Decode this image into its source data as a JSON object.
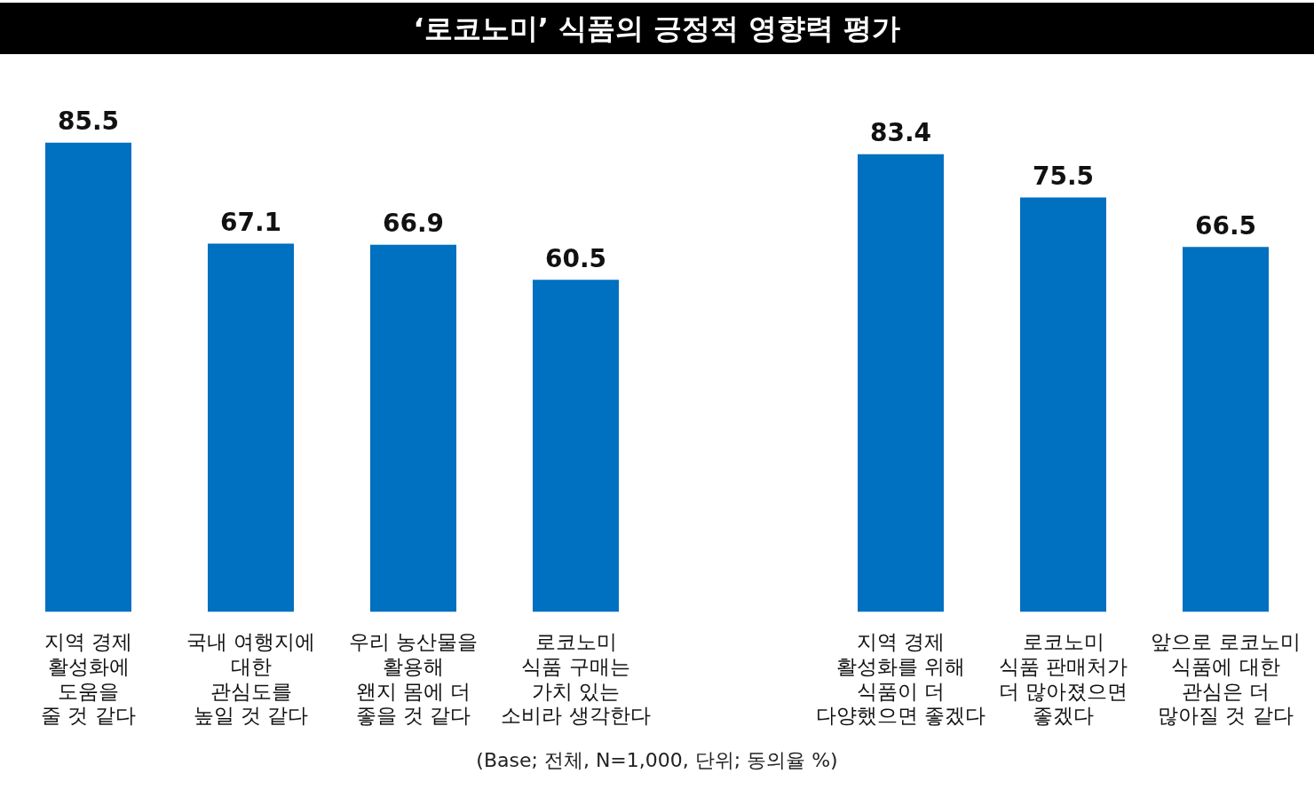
{
  "chart_data": {
    "type": "bar",
    "title": "‘로코노미’ 식품의 긍정적 영향력 평가",
    "categories": [
      "지역 경제\n활성화에\n도움을\n줄 것 같다",
      "국내 여행지에\n대한\n관심도를\n높일 것 같다",
      "우리 농산물을\n활용해\n왠지 몸에 더\n좋을 것 같다",
      "로코노미\n식품 구매는\n가치 있는\n소비라 생각한다",
      null,
      "지역 경제\n활성화를 위해\n식품이 더\n다양했으면 좋겠다",
      "로코노미\n식품 판매처가\n더 많아졌으면\n좋겠다",
      "앞으로 로코노미\n식품에 대한\n관심은 더\n많아질 것 같다"
    ],
    "values": [
      85.5,
      67.1,
      66.9,
      60.5,
      null,
      83.4,
      75.5,
      66.5
    ],
    "color": "#0070c0",
    "data_labels": true,
    "annotations": [
      "(Base; 전체, N=1,000, 단위; 동의율 %)"
    ]
  }
}
